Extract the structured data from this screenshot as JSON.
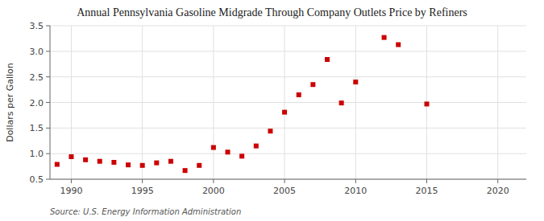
{
  "chart_data": {
    "type": "scatter",
    "title": "Annual Pennsylvania Gasoline Midgrade Through Company Outlets Price by Refiners",
    "ylabel": "Dollars per Gallon",
    "source": "Source: U.S. Energy Information Administration",
    "color": "#cc0000",
    "marker": "square",
    "grid": true,
    "xlim": [
      1988.5,
      2022
    ],
    "ylim": [
      0.5,
      3.5
    ],
    "xticks": [
      1990,
      1995,
      2000,
      2005,
      2010,
      2015,
      2020
    ],
    "yticks": [
      0.5,
      {
        "value": 1.0,
        "label": "1.0"
      },
      1.5,
      {
        "value": 2.0,
        "label": "2.0"
      },
      2.5,
      {
        "value": 3.0,
        "label": "3.0"
      },
      3.5
    ],
    "x": [
      1989,
      1990,
      1991,
      1992,
      1993,
      1994,
      1995,
      1996,
      1997,
      1998,
      1999,
      2000,
      2001,
      2002,
      2003,
      2004,
      2005,
      2006,
      2007,
      2008,
      2009,
      2010,
      2012,
      2013,
      2015
    ],
    "values": [
      0.79,
      0.94,
      0.88,
      0.85,
      0.83,
      0.78,
      0.77,
      0.82,
      0.85,
      0.67,
      0.77,
      1.12,
      1.03,
      0.95,
      1.15,
      1.44,
      1.81,
      2.15,
      2.35,
      2.84,
      1.99,
      2.4,
      3.27,
      3.13,
      1.97
    ]
  }
}
